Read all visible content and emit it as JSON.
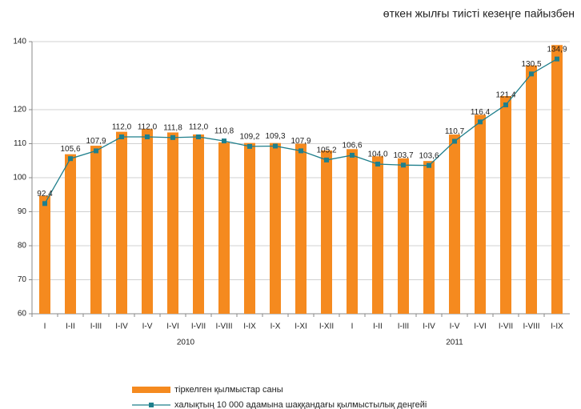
{
  "chart_data": {
    "type": "bar_line",
    "title": "өткен жылғы тиісті кезеңге пайызбен",
    "categories": [
      "I",
      "I-II",
      "I-III",
      "I-IV",
      "I-V",
      "I-VI",
      "I-VII",
      "I-VIII",
      "I-IX",
      "I-X",
      "I-XI",
      "I-XII",
      "I",
      "I-II",
      "I-III",
      "I-IV",
      "I-V",
      "I-VI",
      "I-VII",
      "I-VIII",
      "I-IX"
    ],
    "group_labels": [
      "2010",
      "2011"
    ],
    "group_sizes": [
      12,
      9
    ],
    "ylim": [
      60,
      140
    ],
    "yticks": [
      60,
      70,
      80,
      90,
      100,
      110,
      120,
      140
    ],
    "grid": true,
    "series": [
      {
        "name": "тіркелген қылмыстар саны",
        "type": "bar",
        "color": "#f58a1f",
        "values": [
          94.7,
          106.9,
          109.4,
          113.5,
          114.3,
          113.3,
          112.7,
          110.4,
          110.2,
          110.2,
          110.0,
          108.0,
          108.4,
          106.3,
          105.7,
          104.9,
          112.7,
          118.5,
          124.0,
          133.0,
          139.0
        ]
      },
      {
        "name": "халықтың 10 000 адамына шаққандағы қылмыстылық деңгейі",
        "type": "line",
        "color": "#1f7f8c",
        "values": [
          92.4,
          105.6,
          107.9,
          112.0,
          112.0,
          111.8,
          112.0,
          110.8,
          109.2,
          109.3,
          107.9,
          105.2,
          106.6,
          104.0,
          103.7,
          103.6,
          110.7,
          116.4,
          121.4,
          130.5,
          134.9
        ],
        "value_labels": [
          "92,4",
          "105,6",
          "107,9",
          "112,0",
          "112,0",
          "111,8",
          "112,0",
          "110,8",
          "109,2",
          "109,3",
          "107,9",
          "105,2",
          "106,6",
          "104,0",
          "103,7",
          "103,6",
          "110,7",
          "116,4",
          "121,4",
          "130,5",
          "134,9"
        ]
      }
    ]
  }
}
